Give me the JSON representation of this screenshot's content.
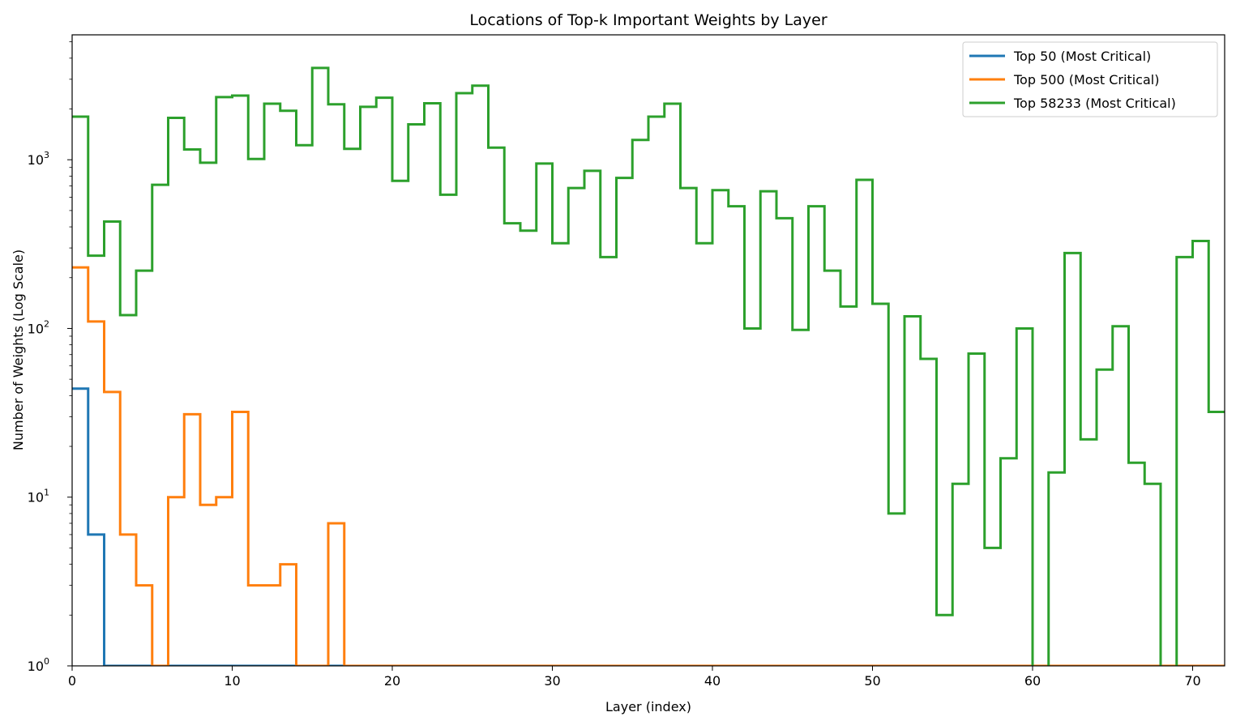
{
  "chart_data": {
    "type": "line",
    "step": "post",
    "title": "Locations of Top-k Important Weights by Layer",
    "xlabel": "Layer (index)",
    "ylabel": "Number of Weights (Log Scale)",
    "yscale": "log",
    "xlim": [
      0,
      72
    ],
    "ylim": [
      1,
      5500
    ],
    "xticks": [
      0,
      10,
      20,
      30,
      40,
      50,
      60,
      70
    ],
    "yticks": [
      {
        "value": 1,
        "base": "10",
        "exp": "0"
      },
      {
        "value": 10,
        "base": "10",
        "exp": "1"
      },
      {
        "value": 100,
        "base": "10",
        "exp": "2"
      },
      {
        "value": 1000,
        "base": "10",
        "exp": "3"
      }
    ],
    "legend_position": "top-right",
    "series": [
      {
        "name": "Top 50 (Most Critical)",
        "color": "#1f77b4",
        "values": [
          44,
          6,
          1,
          1,
          1,
          1,
          1,
          1,
          1,
          1,
          1,
          1,
          1,
          1,
          1,
          1,
          1,
          1,
          1,
          1,
          1,
          1,
          1,
          1,
          1,
          1,
          1,
          1,
          1,
          1,
          1,
          1,
          1,
          1,
          1,
          1,
          1,
          1,
          1,
          1,
          1,
          1,
          1,
          1,
          1,
          1,
          1,
          1,
          1,
          1,
          1,
          1,
          1,
          1,
          1,
          1,
          1,
          1,
          1,
          1,
          1,
          1,
          1,
          1,
          1,
          1,
          1,
          1,
          1,
          1,
          1,
          1
        ]
      },
      {
        "name": "Top 500 (Most Critical)",
        "color": "#ff7f0e",
        "values": [
          230,
          110,
          42,
          6,
          3,
          1,
          10,
          31,
          9,
          10,
          32,
          3,
          3,
          4,
          1,
          1,
          7,
          1,
          1,
          1,
          1,
          1,
          1,
          1,
          1,
          1,
          1,
          1,
          1,
          1,
          1,
          1,
          1,
          1,
          1,
          1,
          1,
          1,
          1,
          1,
          1,
          1,
          1,
          1,
          1,
          1,
          1,
          1,
          1,
          1,
          1,
          1,
          1,
          1,
          1,
          1,
          1,
          1,
          1,
          1,
          1,
          1,
          1,
          1,
          1,
          1,
          1,
          1,
          1,
          1,
          1,
          1
        ]
      },
      {
        "name": "Top 58233 (Most Critical)",
        "color": "#2ca02c",
        "values": [
          1800,
          270,
          430,
          120,
          220,
          710,
          1770,
          1150,
          960,
          2350,
          2400,
          1010,
          2150,
          1950,
          1220,
          3500,
          2130,
          1160,
          2060,
          2330,
          750,
          1620,
          2160,
          620,
          2480,
          2750,
          1180,
          420,
          380,
          950,
          320,
          680,
          860,
          265,
          780,
          1310,
          1800,
          2150,
          680,
          320,
          660,
          530,
          100,
          650,
          450,
          98,
          530,
          220,
          135,
          760,
          140,
          8,
          118,
          66,
          2,
          12,
          71,
          5,
          17,
          100,
          0.5,
          14,
          280,
          22,
          57,
          103,
          16,
          12,
          0.5,
          265,
          330,
          32
        ]
      }
    ]
  }
}
